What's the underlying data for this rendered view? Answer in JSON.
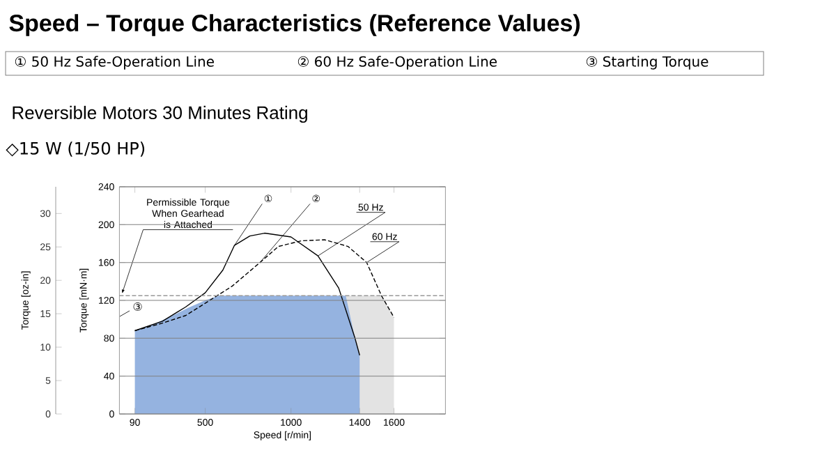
{
  "chart_data": {
    "type": "line",
    "title": "Speed – Torque Characteristics (Reference Values)",
    "subtitle": "Reversible Motors  30 Minutes Rating",
    "xlabel": "Speed [r/min]",
    "ylabel": "Torque [mN·m]",
    "y2label": "Torque [oz-in]",
    "annotations": [
      "① 50 Hz Safe-Operation Line",
      "② 60 Hz Safe-Operation Line",
      "③ Starting Torque",
      "◇15 W (1/50 HP)",
      {
        "text": "①",
        "x": 670,
        "y": 178
      },
      {
        "text": "②",
        "x": 819,
        "y": 160
      },
      "③"
    ],
    "xlim": [
      0,
      1900
    ],
    "ylim": [
      0,
      240
    ],
    "xticks": [
      90,
      500,
      1000,
      1400,
      1600
    ],
    "yticks": [
      0,
      40,
      80,
      120,
      160,
      200,
      240
    ],
    "y2lim": [
      0,
      34
    ],
    "y2ticks": [
      0,
      5,
      10,
      15,
      20,
      25,
      30
    ],
    "grid": "y",
    "ref_lines": [
      {
        "axis": "y",
        "value": 125,
        "label": "Permissible Torque When Gearhead is Attached",
        "color": "#999999",
        "line_style": "dashed"
      }
    ],
    "series": [
      {
        "type": "area",
        "color": "#e3e3e3",
        "x": [
          1319,
          1527,
          1600
        ],
        "values": [
          125,
          125,
          102
        ]
      },
      {
        "type": "area",
        "color": "#95b3e0",
        "x": [
          90,
          200,
          300,
          400,
          500,
          580,
          1319,
          1373,
          1400
        ],
        "values": [
          88,
          95,
          103,
          112,
          120,
          125,
          125,
          80,
          62
        ]
      },
      {
        "name": "50 Hz",
        "color": "#000000",
        "x": [
          90,
          251,
          386,
          500,
          603,
          670,
          760,
          846,
          1000,
          1157,
          1278,
          1373,
          1400
        ],
        "values": [
          88,
          98,
          113,
          128,
          152,
          178,
          188,
          191,
          187,
          167,
          133,
          80,
          62
        ]
      },
      {
        "name": "60 Hz",
        "color": "#000000",
        "line_style": "dashed",
        "x": [
          90,
          251,
          386,
          500,
          657,
          819,
          927,
          1062,
          1197,
          1332,
          1441,
          1527,
          1600
        ],
        "values": [
          88,
          96,
          104,
          117,
          135,
          160,
          177,
          183,
          184,
          177,
          160,
          125,
          102
        ]
      }
    ]
  }
}
